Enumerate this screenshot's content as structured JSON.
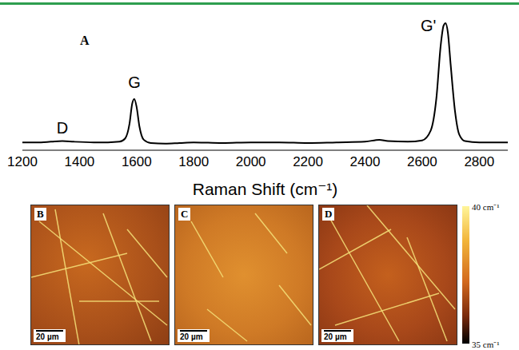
{
  "chart_data": {
    "type": "line",
    "panel": "A",
    "x_label": "Raman Shift (cm⁻¹)",
    "color": "#000000",
    "tick_labels": "x",
    "grid": false,
    "xlim": [
      1200,
      2900
    ],
    "xticks": [
      1200,
      1400,
      1600,
      1800,
      2000,
      2200,
      2400,
      2600,
      2800
    ],
    "ylim": [
      0,
      1
    ],
    "x": [
      1200,
      1250,
      1300,
      1340,
      1380,
      1450,
      1500,
      1540,
      1560,
      1575,
      1585,
      1592,
      1600,
      1610,
      1625,
      1650,
      1700,
      1750,
      1800,
      1900,
      2000,
      2100,
      2200,
      2300,
      2400,
      2450,
      2480,
      2550,
      2600,
      2630,
      2650,
      2665,
      2675,
      2682,
      2690,
      2700,
      2715,
      2730,
      2750,
      2800,
      2850,
      2900
    ],
    "values": [
      0.06,
      0.06,
      0.065,
      0.07,
      0.065,
      0.06,
      0.06,
      0.065,
      0.09,
      0.2,
      0.36,
      0.39,
      0.33,
      0.18,
      0.08,
      0.055,
      0.05,
      0.055,
      0.06,
      0.055,
      0.06,
      0.06,
      0.055,
      0.06,
      0.065,
      0.08,
      0.07,
      0.065,
      0.075,
      0.15,
      0.4,
      0.8,
      0.95,
      0.97,
      0.9,
      0.65,
      0.3,
      0.12,
      0.07,
      0.06,
      0.06,
      0.06
    ],
    "annotations": [
      {
        "text": "D",
        "x": 1340,
        "y": 0.17
      },
      {
        "text": "G",
        "x": 1592,
        "y": 0.52
      },
      {
        "text": "G'",
        "x": 2622,
        "y": 0.95
      }
    ]
  },
  "maps": [
    {
      "panel": "B",
      "scale_bar": "20 µm"
    },
    {
      "panel": "C",
      "scale_bar": "20 µm"
    },
    {
      "panel": "D",
      "scale_bar": "20 µm"
    }
  ],
  "colorbar": {
    "range": [
      35,
      40
    ],
    "ticks": [
      {
        "value": 40,
        "label": "40 cm⁻¹"
      },
      {
        "value": 35,
        "label": "35 cm⁻¹"
      }
    ]
  }
}
